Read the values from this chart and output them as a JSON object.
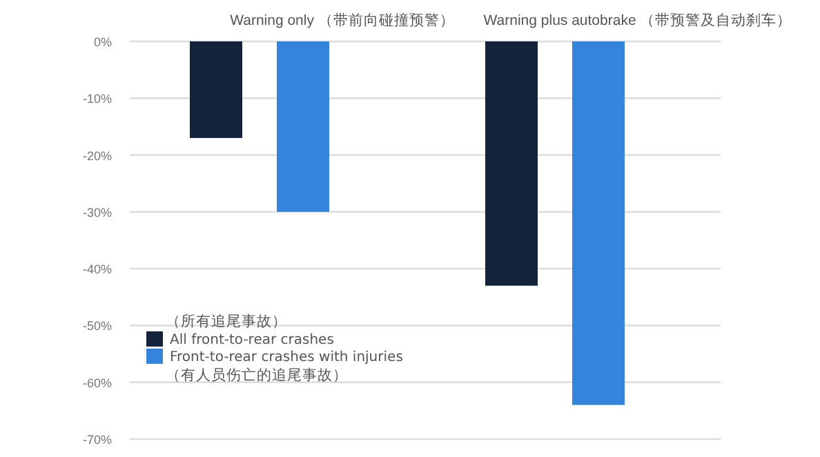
{
  "chart_data": {
    "type": "bar",
    "categories": [
      "Warning only （带前向碰撞预警）",
      "Warning plus autobrake （带预警及自动刹车）"
    ],
    "series": [
      {
        "name": "All front-to-rear crashes",
        "color": "#14233b",
        "values": [
          -17,
          -43
        ]
      },
      {
        "name": "Front-to-rear crashes with injuries",
        "color": "#3584dc",
        "values": [
          -30,
          -64
        ]
      }
    ],
    "ylim": [
      -70,
      0
    ],
    "yticks": [
      {
        "value": 0,
        "label": "0%"
      },
      {
        "value": -10,
        "label": "-10%"
      },
      {
        "value": -20,
        "label": "-20%"
      },
      {
        "value": -30,
        "label": "-30%"
      },
      {
        "value": -40,
        "label": "-40%"
      },
      {
        "value": -50,
        "label": "-50%"
      },
      {
        "value": -60,
        "label": "-60%"
      },
      {
        "value": -70,
        "label": "-70%"
      }
    ],
    "grid": "y",
    "legend": "bottom left",
    "annotations": [
      "（所有追尾事故）",
      "（有人员伤亡的追尾事故）"
    ]
  }
}
